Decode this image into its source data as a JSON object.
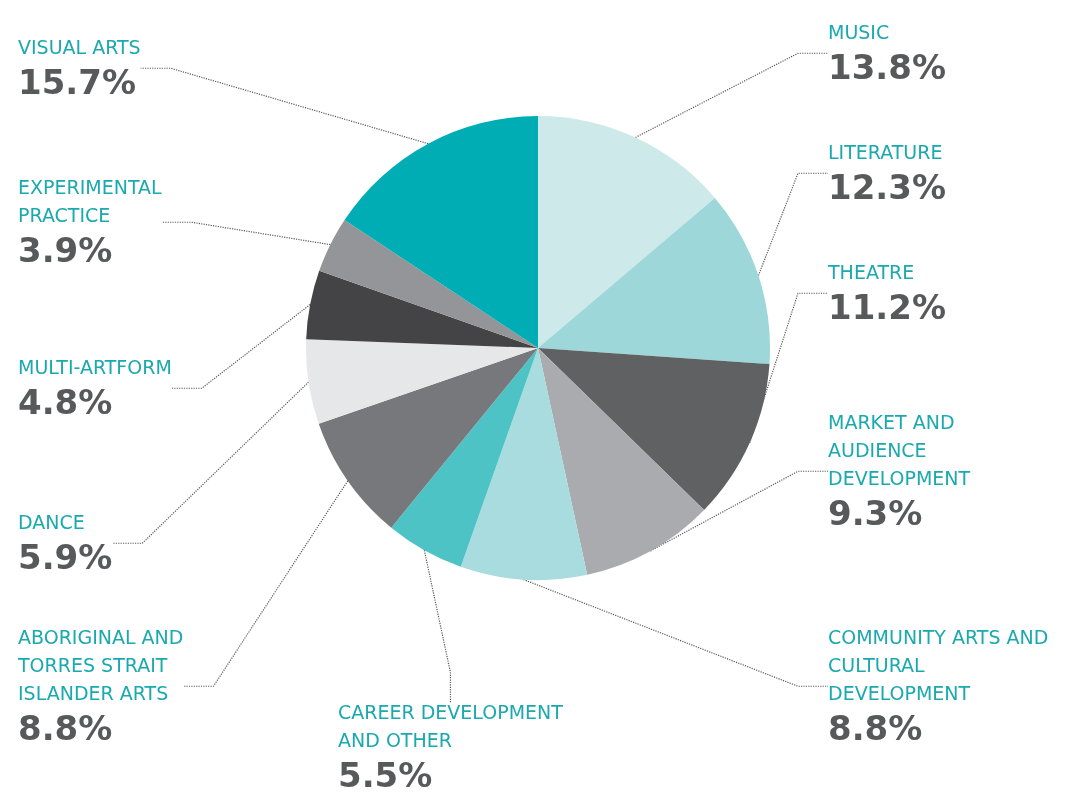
{
  "chart_data": {
    "type": "pie",
    "categories": [
      "MUSIC",
      "LITERATURE",
      "THEATRE",
      "MARKET AND AUDIENCE DEVELOPMENT",
      "COMMUNITY ARTS AND CULTURAL DEVELOPMENT",
      "CAREER DEVELOPMENT AND OTHER",
      "ABORIGINAL AND TORRES STRAIT ISLANDER ARTS",
      "DANCE",
      "MULTI-ARTFORM",
      "EXPERIMENTAL PRACTICE",
      "VISUAL ARTS"
    ],
    "values": [
      13.8,
      12.3,
      11.2,
      9.3,
      8.8,
      5.5,
      8.8,
      5.9,
      4.8,
      3.9,
      15.7
    ],
    "value_labels": [
      "13.8%",
      "12.3%",
      "11.2%",
      "9.3%",
      "8.8%",
      "5.5%",
      "8.8%",
      "5.9%",
      "4.8%",
      "3.9%",
      "15.7%"
    ],
    "colors": [
      "#cde9ea",
      "#9dd7da",
      "#606163",
      "#a9abae",
      "#a9dcdf",
      "#4ec3c5",
      "#77787b",
      "#e6e7e8",
      "#444446",
      "#939598",
      "#00adb4"
    ],
    "legend": false
  }
}
